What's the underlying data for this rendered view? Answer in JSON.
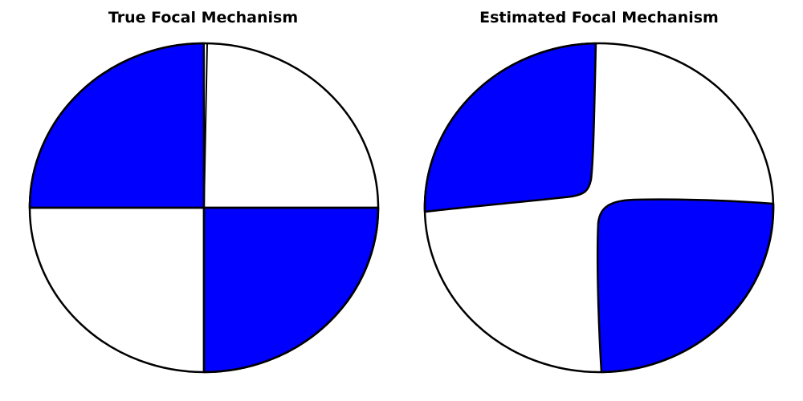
{
  "panels": [
    {
      "title": "True Focal Mechanism",
      "compression_color": "#0000ff",
      "dilatation_color": "#ffffff",
      "outline_color": "#000000"
    },
    {
      "title": "Estimated Focal Mechanism",
      "compression_color": "#0000ff",
      "dilatation_color": "#ffffff",
      "outline_color": "#000000"
    }
  ]
}
